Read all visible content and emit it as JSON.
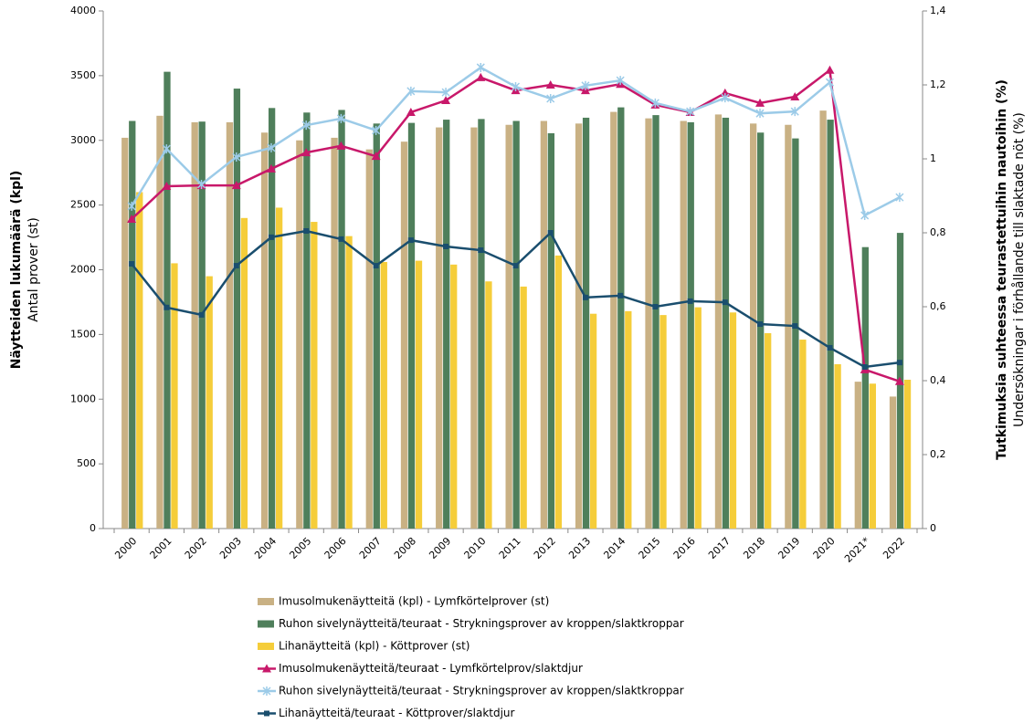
{
  "chart_data": {
    "type": "bar",
    "ylabel": [
      "Näytteiden lukumäärä (kpl)",
      "Antal prover (st)"
    ],
    "y2label": [
      "Tutkimuksia suhteessa teurastettuihin nautoihin (%)",
      "Undersökningar i förhållande till slaktade nöt (%)"
    ],
    "categories": [
      "2000",
      "2001",
      "2002",
      "2003",
      "2004",
      "2005",
      "2006",
      "2007",
      "2008",
      "2009",
      "2010",
      "2011",
      "2012",
      "2013",
      "2014",
      "2015",
      "2016",
      "2017",
      "2018",
      "2019",
      "2020",
      "2021*",
      "2022"
    ],
    "ylim": [
      0,
      4000
    ],
    "yticks": [
      0,
      500,
      1000,
      1500,
      2000,
      2500,
      3000,
      3500,
      4000
    ],
    "y2lim": [
      0,
      1.4
    ],
    "y2ticks": [
      0,
      {
        "value": 0.2,
        "label": "0,2"
      },
      {
        "value": 0.4,
        "label": "0,4"
      },
      {
        "value": 0.6,
        "label": "0,6"
      },
      {
        "value": 0.8,
        "label": "0,8"
      },
      1,
      {
        "value": 1.2,
        "label": "1,2"
      },
      {
        "value": 1.4,
        "label": "1,4"
      }
    ],
    "series": [
      {
        "name": "Imusolmukenäytteitä (kpl) - Lymfkörtelprover (st)",
        "type": "bar",
        "color": "#c9b184",
        "values": [
          3020,
          3190,
          3140,
          3140,
          3060,
          3000,
          3020,
          2930,
          2990,
          3100,
          3100,
          3120,
          3150,
          3130,
          3220,
          3170,
          3150,
          3200,
          3130,
          3120,
          3230,
          1135,
          1020
        ]
      },
      {
        "name": "Ruhon sivelynäytteitä/teuraat - Strykningsprover av kroppen/slaktkroppar",
        "type": "bar",
        "color": "#4f7f5b",
        "values": [
          3150,
          3530,
          3145,
          3400,
          3250,
          3215,
          3235,
          3130,
          3135,
          3160,
          3165,
          3150,
          3055,
          3175,
          3255,
          3195,
          3140,
          3175,
          3060,
          3015,
          3160,
          2175,
          2285
        ]
      },
      {
        "name": "Lihanäytteitä (kpl) - Köttprover (st)",
        "type": "bar",
        "color": "#f5cd3a",
        "values": [
          2600,
          2050,
          1950,
          2400,
          2480,
          2370,
          2260,
          2060,
          2070,
          2040,
          1910,
          1870,
          2110,
          1660,
          1680,
          1650,
          1710,
          1670,
          1510,
          1460,
          1270,
          1120,
          1150
        ]
      },
      {
        "name": "Imusolmukenäytteitä/teuraat - Lymfkörtelprov/slaktdjur",
        "type": "line",
        "axis": "y2",
        "marker": "triangle",
        "color": "#c8186a",
        "values": [
          0.837,
          0.926,
          0.928,
          0.928,
          0.973,
          1.017,
          1.035,
          1.007,
          1.126,
          1.158,
          1.22,
          1.185,
          1.2,
          1.185,
          1.202,
          1.146,
          1.126,
          1.178,
          1.151,
          1.168,
          1.24,
          0.43,
          0.398
        ]
      },
      {
        "name": "Ruhon sivelynäytteitä/teuraat - Strykningsprover av kroppen/slaktkroppar",
        "type": "line",
        "axis": "y2",
        "marker": "star",
        "color": "#9ccbe8",
        "values": [
          0.872,
          1.027,
          0.931,
          1.005,
          1.03,
          1.091,
          1.109,
          1.077,
          1.183,
          1.18,
          1.247,
          1.195,
          1.163,
          1.198,
          1.212,
          1.151,
          1.128,
          1.165,
          1.123,
          1.128,
          1.207,
          0.847,
          0.896
        ]
      },
      {
        "name": "Lihanäytteitä/teuraat - Köttprover/slaktdjur",
        "type": "line",
        "axis": "y2",
        "marker": "square",
        "color": "#1a4e6e",
        "values": [
          0.716,
          0.598,
          0.578,
          0.711,
          0.788,
          0.805,
          0.783,
          0.711,
          0.78,
          0.763,
          0.753,
          0.711,
          0.8,
          0.625,
          0.63,
          0.6,
          0.615,
          0.612,
          0.553,
          0.548,
          0.489,
          0.437,
          0.449
        ]
      }
    ]
  }
}
